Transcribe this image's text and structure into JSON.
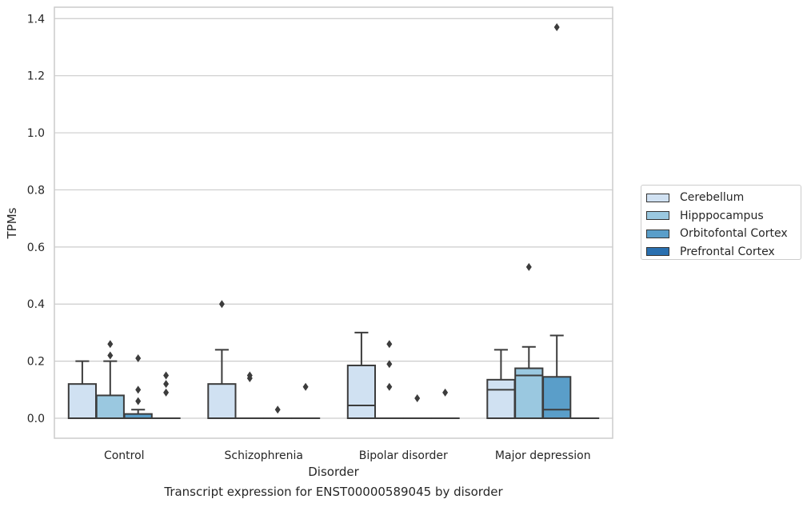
{
  "caption": "Transcript expression for ENST00000589045 by disorder",
  "chart_data": {
    "type": "box",
    "xlabel": "Disorder",
    "ylabel": "TPMs",
    "ylim": [
      -0.07,
      1.44
    ],
    "yticks": [
      0.0,
      0.2,
      0.4,
      0.6,
      0.8,
      1.0,
      1.2,
      1.4
    ],
    "ytick_labels": [
      "0.0",
      "0.2",
      "0.4",
      "0.6",
      "0.8",
      "1.0",
      "1.2",
      "1.4"
    ],
    "grid": true,
    "legend_position": "right",
    "categories": [
      "Control",
      "Schizophrenia",
      "Bipolar disorder",
      "Major depression"
    ],
    "series": [
      {
        "name": "Cerebellum",
        "color": "#d0e1f2",
        "boxes": [
          {
            "min": 0,
            "q1": 0,
            "median": 0,
            "q3": 0.12,
            "max": 0.2,
            "outliers": []
          },
          {
            "min": 0,
            "q1": 0,
            "median": 0,
            "q3": 0.12,
            "max": 0.24,
            "outliers": [
              0.4
            ]
          },
          {
            "min": 0,
            "q1": 0,
            "median": 0.045,
            "q3": 0.185,
            "max": 0.3,
            "outliers": []
          },
          {
            "min": 0,
            "q1": 0,
            "median": 0.1,
            "q3": 0.135,
            "max": 0.24,
            "outliers": []
          }
        ]
      },
      {
        "name": "Hipppocampus",
        "color": "#9ac8e0",
        "boxes": [
          {
            "min": 0,
            "q1": 0,
            "median": 0,
            "q3": 0.08,
            "max": 0.2,
            "outliers": [
              0.22,
              0.26
            ]
          },
          {
            "min": 0,
            "q1": 0,
            "median": 0,
            "q3": 0,
            "max": 0,
            "outliers": [
              0.14,
              0.15
            ]
          },
          {
            "min": 0,
            "q1": 0,
            "median": 0,
            "q3": 0,
            "max": 0,
            "outliers": [
              0.11,
              0.19,
              0.26
            ]
          },
          {
            "min": 0,
            "q1": 0,
            "median": 0.15,
            "q3": 0.175,
            "max": 0.25,
            "outliers": [
              0.53
            ]
          }
        ]
      },
      {
        "name": "Orbitofontal Cortex",
        "color": "#5a9ec9",
        "boxes": [
          {
            "min": 0,
            "q1": 0,
            "median": 0,
            "q3": 0.015,
            "max": 0.03,
            "outliers": [
              0.06,
              0.1,
              0.21
            ]
          },
          {
            "min": 0,
            "q1": 0,
            "median": 0,
            "q3": 0,
            "max": 0,
            "outliers": [
              0.03
            ]
          },
          {
            "min": 0,
            "q1": 0,
            "median": 0,
            "q3": 0,
            "max": 0,
            "outliers": [
              0.07
            ]
          },
          {
            "min": 0,
            "q1": 0,
            "median": 0.03,
            "q3": 0.145,
            "max": 0.29,
            "outliers": [
              1.37
            ]
          }
        ]
      },
      {
        "name": "Prefrontal Cortex",
        "color": "#2a70b0",
        "boxes": [
          {
            "min": 0,
            "q1": 0,
            "median": 0,
            "q3": 0,
            "max": 0,
            "outliers": [
              0.09,
              0.12,
              0.15
            ]
          },
          {
            "min": 0,
            "q1": 0,
            "median": 0,
            "q3": 0,
            "max": 0,
            "outliers": [
              0.11
            ]
          },
          {
            "min": 0,
            "q1": 0,
            "median": 0,
            "q3": 0,
            "max": 0,
            "outliers": [
              0.09
            ]
          },
          {
            "min": 0,
            "q1": 0,
            "median": 0,
            "q3": 0,
            "max": 0,
            "outliers": []
          }
        ]
      }
    ]
  }
}
